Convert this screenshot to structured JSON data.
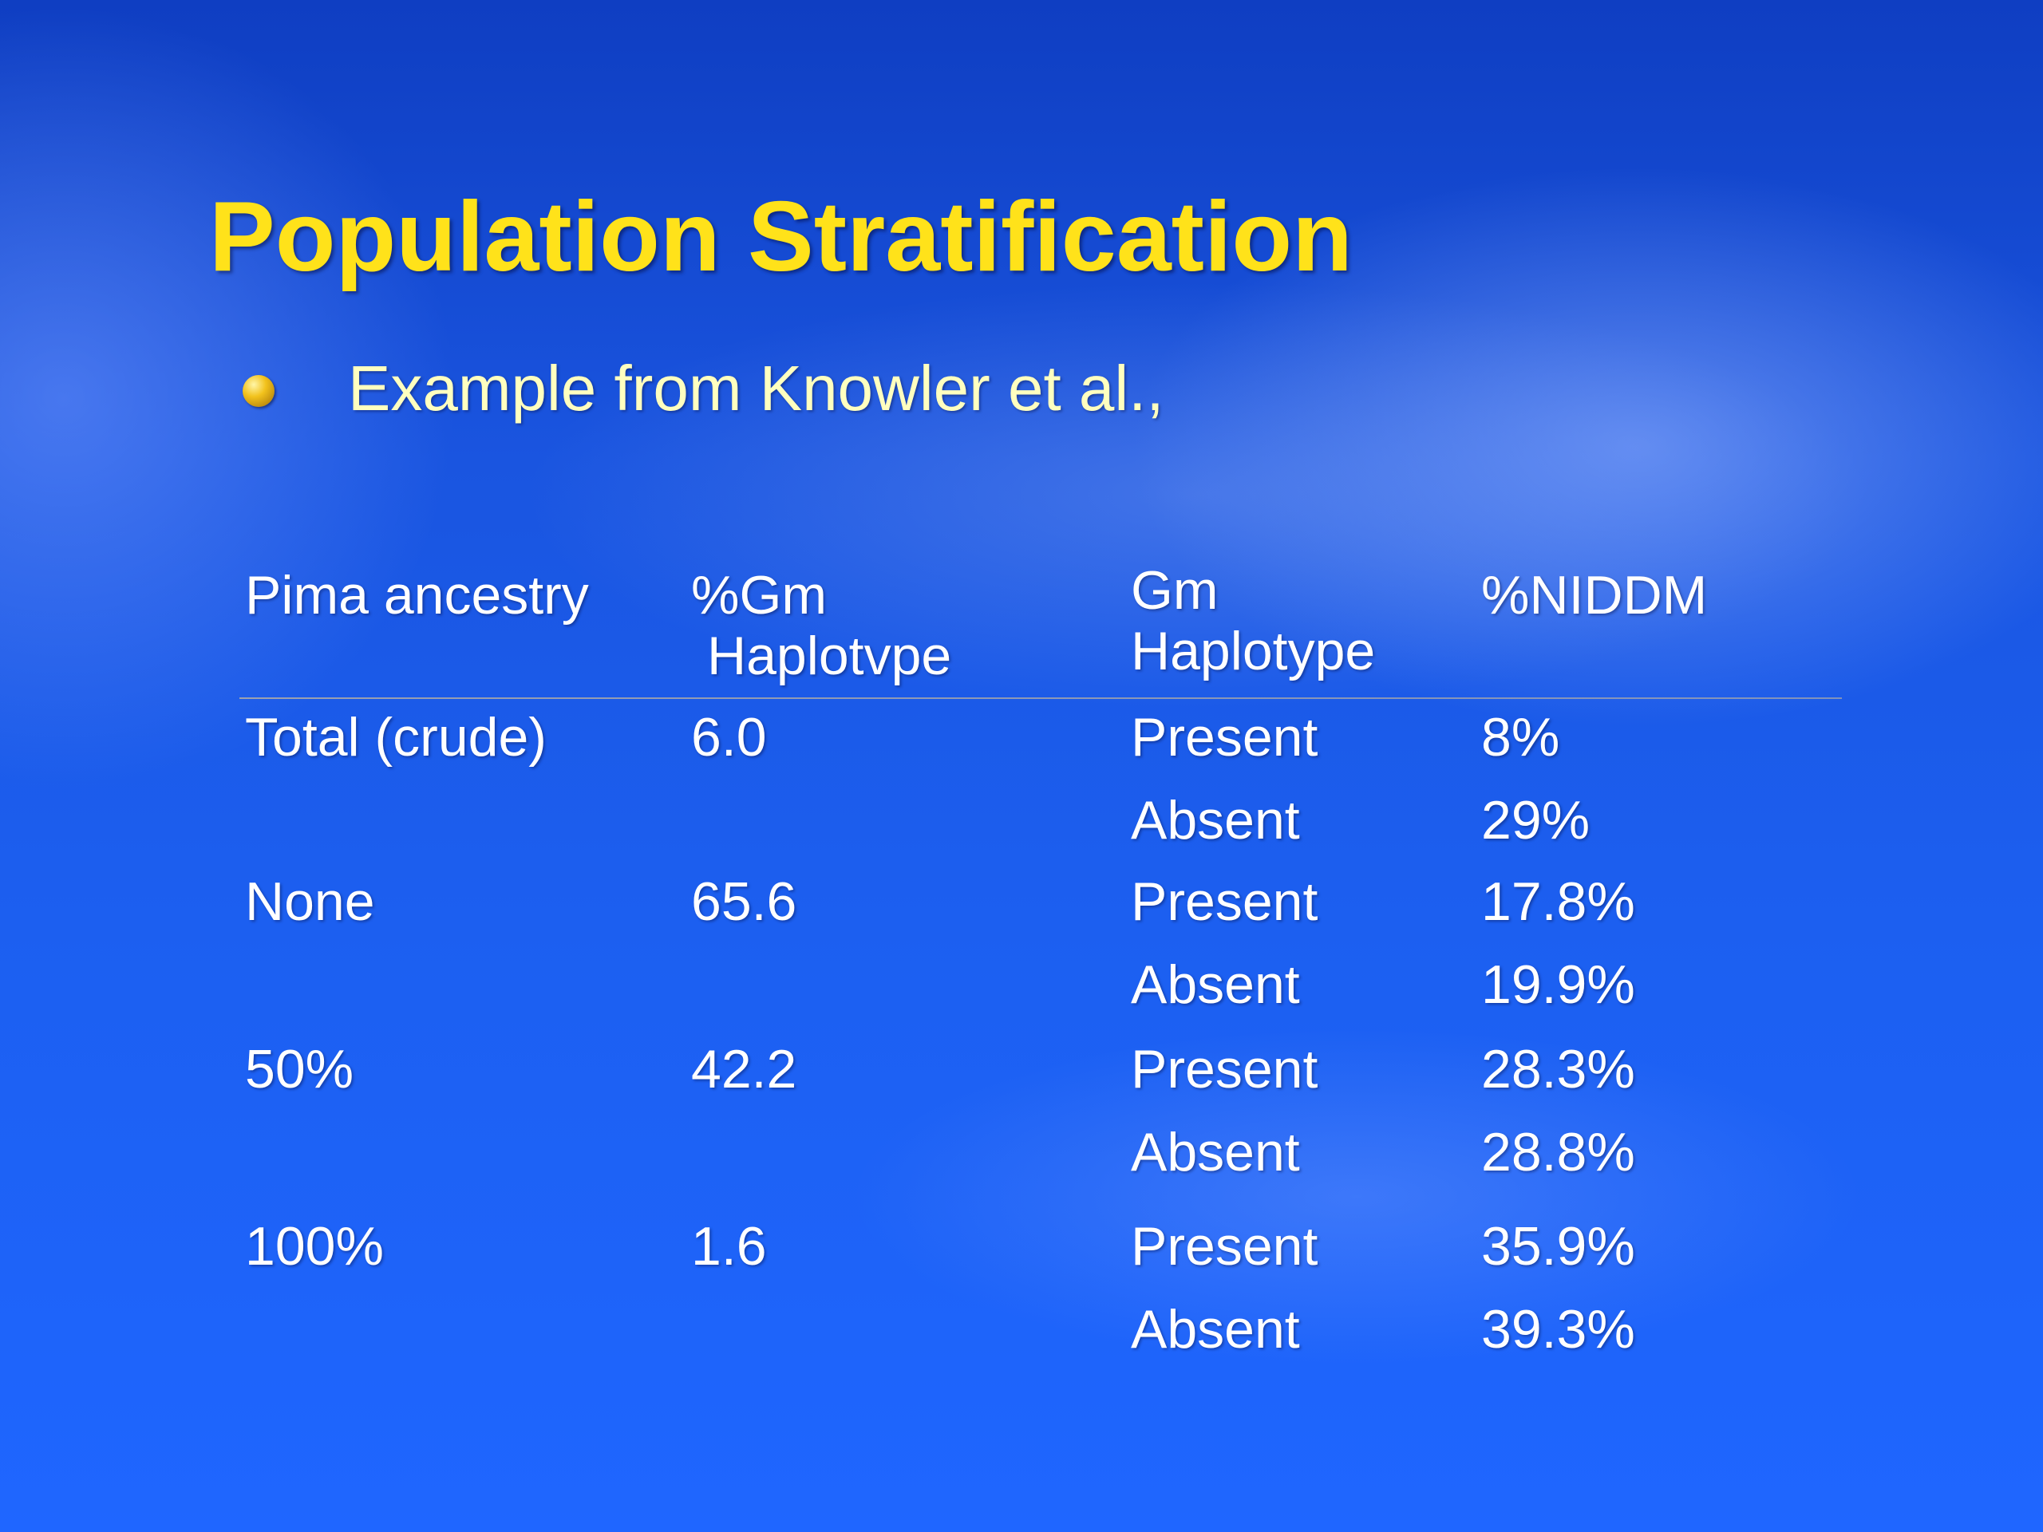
{
  "slide": {
    "title": "Population Stratification",
    "bullet": "Example from Knowler et al.,"
  },
  "table": {
    "headers": {
      "ancestry": "Pima ancestry",
      "gm_pct_line1": "%Gm",
      "gm_pct_line2": "Haplotvpe",
      "gm_line1": "Gm",
      "gm_line2": "Haplotype",
      "niddm": "%NIDDM"
    },
    "rows": [
      {
        "ancestry": "Total (crude)",
        "gm_pct": "6.0",
        "gm": "Present",
        "niddm": "8%"
      },
      {
        "ancestry": "",
        "gm_pct": "",
        "gm": "Absent",
        "niddm": "29%"
      },
      {
        "ancestry": "None",
        "gm_pct": "65.6",
        "gm": "Present",
        "niddm": "17.8%"
      },
      {
        "ancestry": "",
        "gm_pct": "",
        "gm": "Absent",
        "niddm": "19.9%"
      },
      {
        "ancestry": "50%",
        "gm_pct": "42.2",
        "gm": "Present",
        "niddm": "28.3%"
      },
      {
        "ancestry": "",
        "gm_pct": "",
        "gm": "Absent",
        "niddm": "28.8%"
      },
      {
        "ancestry": "100%",
        "gm_pct": "1.6",
        "gm": "Present",
        "niddm": "35.9%"
      },
      {
        "ancestry": "",
        "gm_pct": "",
        "gm": "Absent",
        "niddm": "39.3%"
      }
    ]
  },
  "colors": {
    "title": "#ffe21a",
    "bullet_text": "#ffffbf",
    "table_text": "#ffffff",
    "background": "#1c5ff0"
  },
  "icons": {
    "bullet": "gold-sphere-bullet"
  }
}
